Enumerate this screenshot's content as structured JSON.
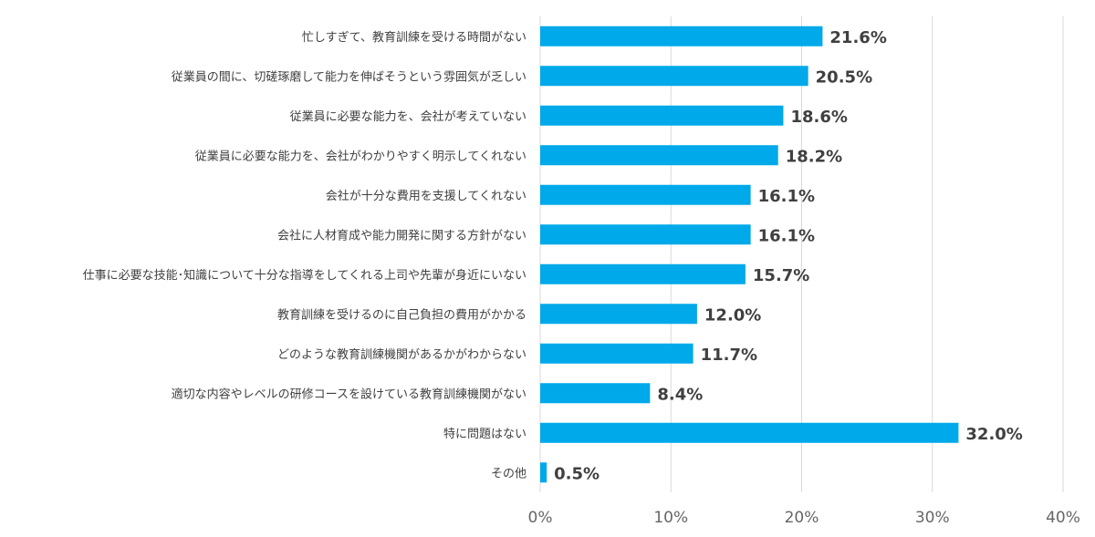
{
  "chart_data": {
    "type": "bar",
    "orientation": "horizontal",
    "title": "",
    "xlabel": "",
    "ylabel": "",
    "xlim": [
      0,
      40
    ],
    "x_ticks": [
      "0%",
      "10%",
      "20%",
      "30%",
      "40%"
    ],
    "x_tick_values": [
      0,
      10,
      20,
      30,
      40
    ],
    "grid": true,
    "bar_color": "#00a9e9",
    "categories": [
      "忙しすぎて、教育訓練を受ける時間がない",
      "従業員の間に、切磋琢磨して能力を伸ばそうという雰囲気が乏しい",
      "従業員に必要な能力を、会社が考えていない",
      "従業員に必要な能力を、会社がわかりやすく明示してくれない",
      "会社が十分な費用を支援してくれない",
      "会社に人材育成や能力開発に関する方針がない",
      "仕事に必要な技能･知識について十分な指導をしてくれる上司や先輩が身近にいない",
      "教育訓練を受けるのに自己負担の費用がかかる",
      "どのような教育訓練機関があるかがわからない",
      "適切な内容やレベルの研修コースを設けている教育訓練機関がない",
      "特に問題はない",
      "その他"
    ],
    "values": [
      21.6,
      20.5,
      18.6,
      18.2,
      16.1,
      16.1,
      15.7,
      12.0,
      11.7,
      8.4,
      32.0,
      0.5
    ],
    "value_labels": [
      "21.6%",
      "20.5%",
      "18.6%",
      "18.2%",
      "16.1%",
      "16.1%",
      "15.7%",
      "12.0%",
      "11.7%",
      "8.4%",
      "32.0%",
      "0.5%"
    ]
  }
}
